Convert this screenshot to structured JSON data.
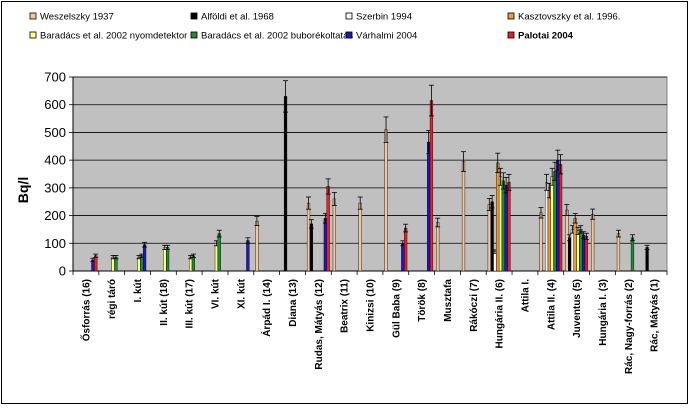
{
  "chart_data": {
    "type": "bar",
    "title": "",
    "xlabel": "",
    "ylabel": "Bq/l",
    "ylim": [
      0,
      700
    ],
    "yticks": [
      0,
      100,
      200,
      300,
      400,
      500,
      600,
      700
    ],
    "grid": true,
    "legend_position": "top",
    "categories": [
      "Ősforrás (16)",
      "régi táró",
      "I. kút",
      "II. kút (18)",
      "III. kút (17)",
      "VI. kút",
      "XI. kút",
      "Árpád I. (14)",
      "Diana (13)",
      "Rudas, Mátyás (12)",
      "Beatrix (11)",
      "Kinizsi (10)",
      "Gül Baba (9)",
      "Török (8)",
      "Musztafa",
      "Rákóczi (7)",
      "Hungária II. (6)",
      "Attila I.",
      "Attila II. (4)",
      "Juventus (5)",
      "Hungária I. (3)",
      "Rác, Nagy-forrás (2)",
      "Rác, Mátyás (1)"
    ],
    "series": [
      {
        "name": "Weszelszky 1937",
        "color": "#f2c79c",
        "values": [
          null,
          null,
          null,
          null,
          null,
          null,
          null,
          180,
          null,
          245,
          260,
          245,
          510,
          null,
          175,
          395,
          240,
          null,
          210,
          220,
          205,
          135,
          null
        ]
      },
      {
        "name": "Alföldi et al. 1968",
        "color": "#000000",
        "values": [
          null,
          null,
          null,
          null,
          null,
          null,
          null,
          null,
          630,
          170,
          null,
          null,
          null,
          null,
          null,
          null,
          250,
          null,
          null,
          120,
          null,
          null,
          85
        ]
      },
      {
        "name": "Szerbin 1994",
        "color": "#f5f5f5",
        "values": [
          null,
          null,
          null,
          null,
          null,
          null,
          null,
          null,
          null,
          null,
          null,
          null,
          null,
          null,
          null,
          null,
          70,
          null,
          320,
          150,
          null,
          null,
          null
        ]
      },
      {
        "name": "Kasztovszky et al. 1996.",
        "color": "#f09a3c",
        "values": [
          null,
          null,
          null,
          null,
          null,
          null,
          null,
          null,
          null,
          null,
          null,
          null,
          null,
          null,
          null,
          null,
          390,
          null,
          290,
          190,
          null,
          null,
          null
        ]
      },
      {
        "name": "Baradács et al. 2002 nyomdetektor",
        "color": "#ffff80",
        "values": [
          null,
          50,
          50,
          85,
          50,
          100,
          null,
          null,
          null,
          null,
          null,
          null,
          null,
          null,
          null,
          null,
          340,
          null,
          340,
          145,
          null,
          null,
          null
        ]
      },
      {
        "name": "Baradács et al. 2002 buborékoltatás",
        "color": "#1e8c32",
        "values": [
          null,
          50,
          55,
          85,
          55,
          135,
          null,
          null,
          null,
          null,
          null,
          null,
          null,
          null,
          null,
          null,
          325,
          null,
          360,
          150,
          null,
          120,
          null
        ]
      },
      {
        "name": "Várhalmi 2004",
        "color": "#1a1ab4",
        "values": [
          40,
          null,
          95,
          null,
          null,
          null,
          110,
          null,
          null,
          190,
          null,
          null,
          100,
          465,
          null,
          null,
          310,
          null,
          400,
          130,
          null,
          null,
          null
        ]
      },
      {
        "name": "Palotai 2004",
        "color": "#e8202a",
        "values": [
          55,
          null,
          null,
          null,
          null,
          null,
          null,
          null,
          null,
          305,
          null,
          null,
          155,
          615,
          null,
          null,
          320,
          null,
          385,
          125,
          null,
          null,
          null
        ]
      }
    ]
  }
}
